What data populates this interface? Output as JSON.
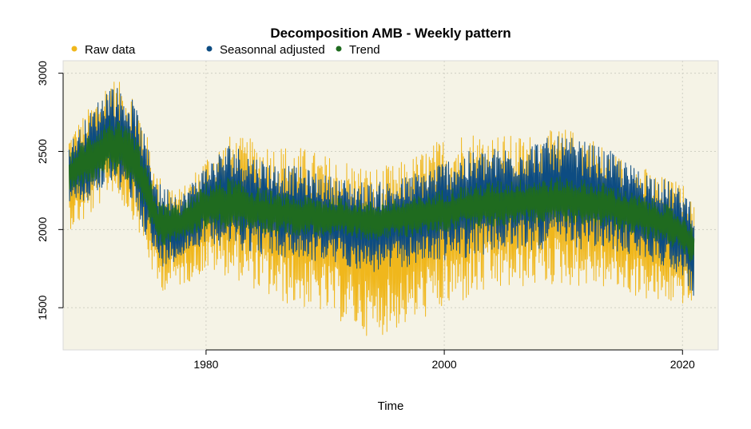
{
  "chart_data": {
    "type": "line",
    "title": "Decomposition AMB - Weekly pattern",
    "xlabel": "Time",
    "ylabel": "",
    "xlim": [
      1968,
      2023
    ],
    "ylim": [
      1230,
      3080
    ],
    "x_ticks": [
      1980,
      2000,
      2020
    ],
    "y_ticks": [
      1500,
      2000,
      2500,
      3000
    ],
    "grid": true,
    "legend_position": "top-left",
    "background_color": "#f5f3e6",
    "series": [
      {
        "name": "Raw data",
        "color": "#f0b71c",
        "x": [
          1968.5,
          1970,
          1972,
          1974,
          1976,
          1978,
          1980,
          1982,
          1984,
          1986,
          1988,
          1990,
          1992,
          1994,
          1996,
          1998,
          2000,
          2002,
          2004,
          2006,
          2008,
          2010,
          2012,
          2014,
          2016,
          2018,
          2020,
          2021
        ],
        "upper": [
          2620,
          2760,
          2980,
          2880,
          2350,
          2260,
          2480,
          2600,
          2580,
          2550,
          2530,
          2480,
          2450,
          2400,
          2420,
          2500,
          2600,
          2640,
          2620,
          2600,
          2620,
          2650,
          2620,
          2500,
          2430,
          2350,
          2300,
          2150
        ],
        "lower": [
          2000,
          2050,
          2250,
          2050,
          1600,
          1640,
          1730,
          1700,
          1620,
          1530,
          1500,
          1460,
          1380,
          1300,
          1360,
          1420,
          1480,
          1540,
          1600,
          1620,
          1640,
          1640,
          1630,
          1620,
          1570,
          1520,
          1520,
          1500
        ]
      },
      {
        "name": "Seasonnal adjusted",
        "color": "#0d4c82",
        "x": [
          1968.5,
          1970,
          1972,
          1974,
          1976,
          1978,
          1980,
          1982,
          1984,
          1986,
          1988,
          1990,
          1992,
          1994,
          1996,
          1998,
          2000,
          2002,
          2004,
          2006,
          2008,
          2010,
          2012,
          2014,
          2016,
          2018,
          2020,
          2021
        ],
        "upper": [
          2550,
          2720,
          2950,
          2820,
          2300,
          2230,
          2420,
          2560,
          2480,
          2420,
          2400,
          2350,
          2320,
          2300,
          2320,
          2380,
          2450,
          2500,
          2520,
          2540,
          2580,
          2600,
          2560,
          2500,
          2400,
          2350,
          2250,
          2200
        ],
        "lower": [
          2150,
          2170,
          2300,
          2150,
          1750,
          1820,
          1920,
          1880,
          1850,
          1820,
          1800,
          1790,
          1760,
          1720,
          1740,
          1780,
          1800,
          1820,
          1850,
          1860,
          1870,
          1880,
          1870,
          1860,
          1830,
          1780,
          1700,
          1560
        ]
      },
      {
        "name": "Trend",
        "color": "#1f6b1f",
        "x": [
          1968.5,
          1970,
          1972,
          1974,
          1976,
          1978,
          1980,
          1982,
          1984,
          1986,
          1988,
          1990,
          1992,
          1994,
          1996,
          1998,
          2000,
          2002,
          2004,
          2006,
          2008,
          2010,
          2012,
          2014,
          2016,
          2018,
          2020,
          2021
        ],
        "upper": [
          2480,
          2600,
          2720,
          2620,
          2180,
          2160,
          2300,
          2340,
          2280,
          2240,
          2220,
          2210,
          2200,
          2180,
          2190,
          2220,
          2260,
          2290,
          2310,
          2320,
          2330,
          2340,
          2320,
          2290,
          2230,
          2190,
          2100,
          2020
        ],
        "lower": [
          2250,
          2280,
          2380,
          2270,
          1880,
          1930,
          2000,
          1990,
          1980,
          1970,
          1960,
          1950,
          1940,
          1930,
          1940,
          1960,
          1980,
          2000,
          2010,
          2030,
          2040,
          2040,
          2030,
          2000,
          1960,
          1920,
          1860,
          1760
        ]
      }
    ]
  }
}
